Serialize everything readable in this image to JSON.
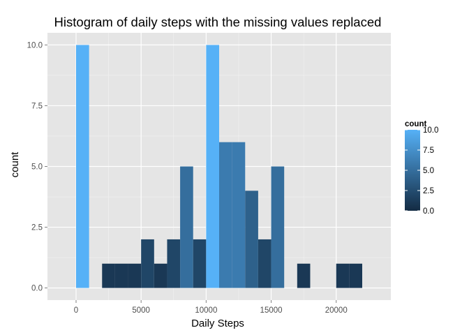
{
  "chart_data": {
    "type": "bar",
    "title": "Histogram of daily steps with the missing values replaced",
    "xlabel": "Daily Steps",
    "ylabel": "count",
    "xlim": [
      -2200,
      24200
    ],
    "ylim": [
      -0.5,
      10.5
    ],
    "x_ticks": [
      0,
      5000,
      10000,
      15000,
      20000
    ],
    "x_tick_labels": [
      "0",
      "5000",
      "10000",
      "15000",
      "20000"
    ],
    "y_ticks": [
      0,
      2.5,
      5,
      7.5,
      10
    ],
    "y_tick_labels": [
      "0.0",
      "2.5",
      "5.0",
      "7.5",
      "10.0"
    ],
    "binwidth": 1000,
    "bins": [
      {
        "start": 0,
        "end": 1000,
        "count": 10
      },
      {
        "start": 1000,
        "end": 2000,
        "count": 0
      },
      {
        "start": 2000,
        "end": 3000,
        "count": 1
      },
      {
        "start": 3000,
        "end": 4000,
        "count": 1
      },
      {
        "start": 4000,
        "end": 5000,
        "count": 1
      },
      {
        "start": 5000,
        "end": 6000,
        "count": 2
      },
      {
        "start": 6000,
        "end": 7000,
        "count": 1
      },
      {
        "start": 7000,
        "end": 8000,
        "count": 2
      },
      {
        "start": 8000,
        "end": 9000,
        "count": 5
      },
      {
        "start": 9000,
        "end": 10000,
        "count": 2
      },
      {
        "start": 10000,
        "end": 11000,
        "count": 10
      },
      {
        "start": 11000,
        "end": 12000,
        "count": 6
      },
      {
        "start": 12000,
        "end": 13000,
        "count": 6
      },
      {
        "start": 13000,
        "end": 14000,
        "count": 4
      },
      {
        "start": 14000,
        "end": 15000,
        "count": 2
      },
      {
        "start": 15000,
        "end": 16000,
        "count": 5
      },
      {
        "start": 16000,
        "end": 17000,
        "count": 0
      },
      {
        "start": 17000,
        "end": 18000,
        "count": 1
      },
      {
        "start": 18000,
        "end": 19000,
        "count": 0
      },
      {
        "start": 19000,
        "end": 20000,
        "count": 0
      },
      {
        "start": 20000,
        "end": 21000,
        "count": 1
      },
      {
        "start": 21000,
        "end": 22000,
        "count": 1
      }
    ],
    "grid": true,
    "legend": {
      "title": "count",
      "placement": "right",
      "type": "colorbar",
      "ticks": [
        0,
        2.5,
        5,
        7.5,
        10
      ],
      "tick_labels": [
        "0.0",
        "2.5",
        "5.0",
        "7.5",
        "10.0"
      ]
    },
    "colors": {
      "panel_background": "#e5e5e5",
      "grid_major": "#ffffff",
      "grid_minor": "#f2f2f2",
      "low": "#132b43",
      "high": "#56b1f7"
    }
  }
}
